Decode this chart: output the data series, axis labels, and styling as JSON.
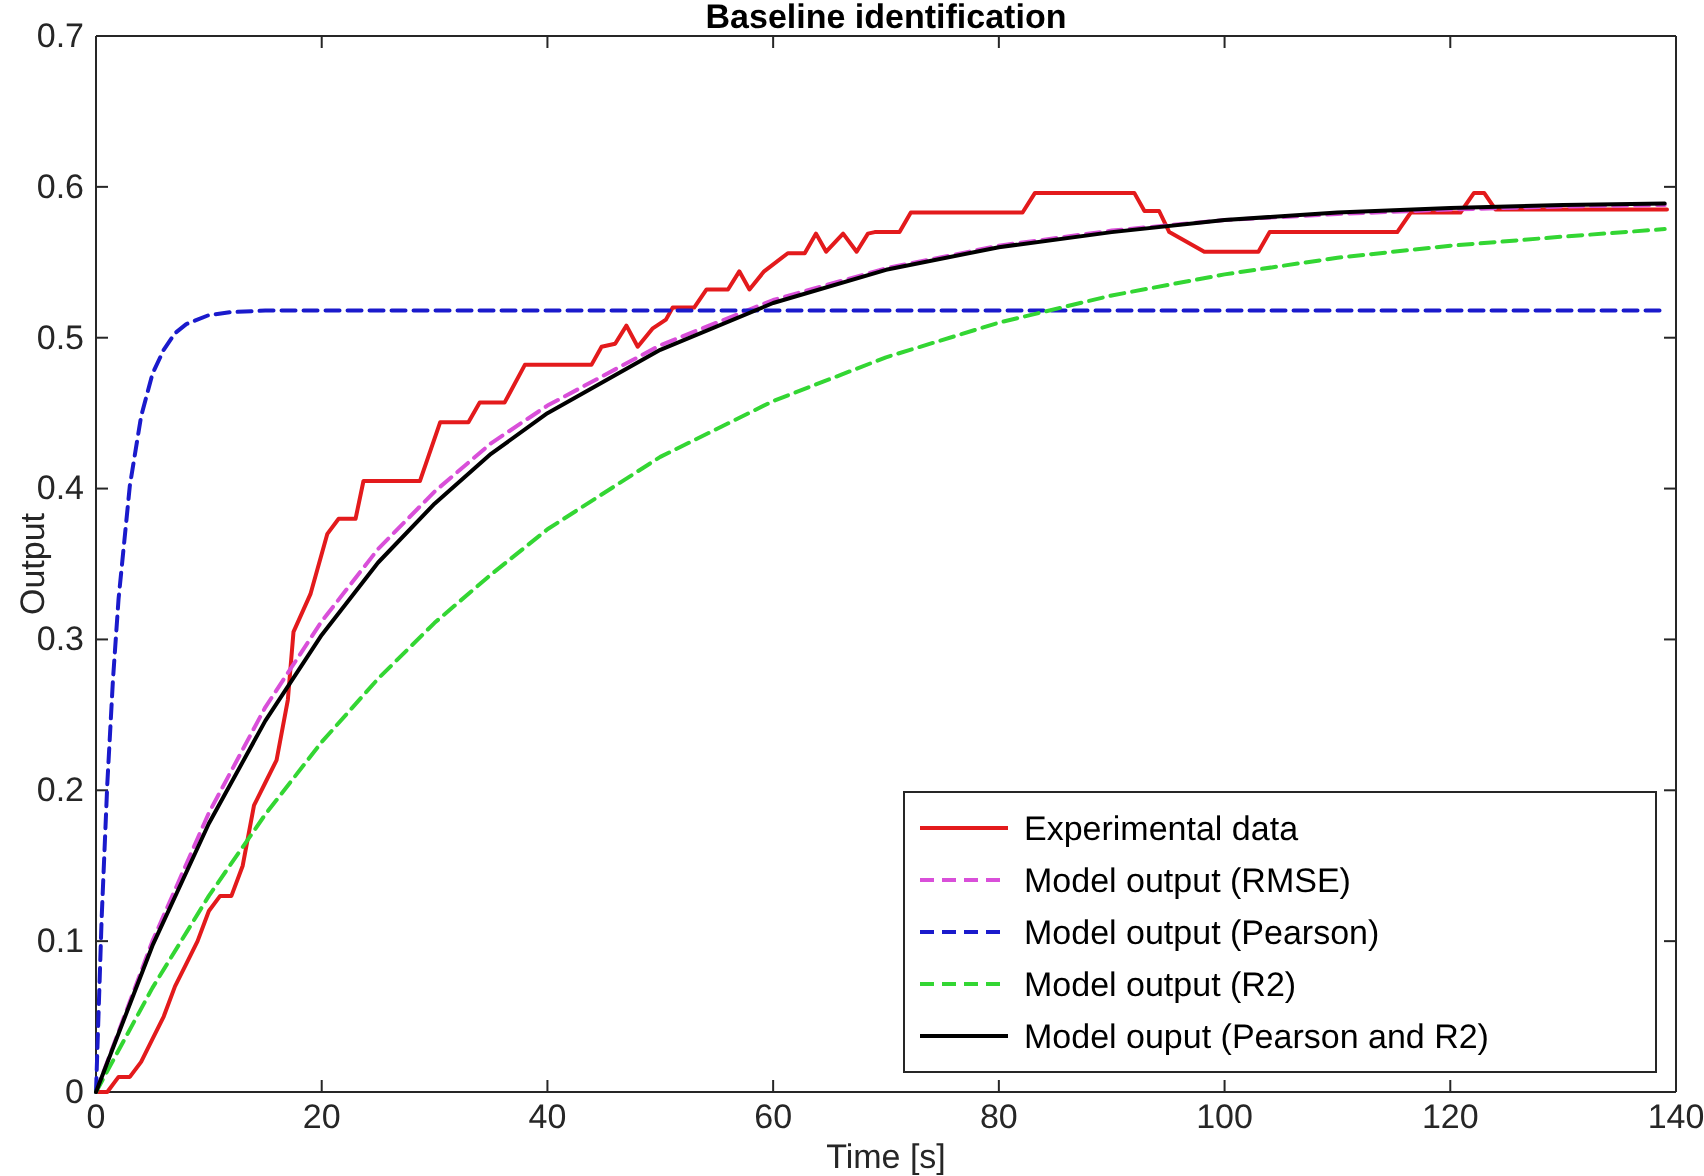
{
  "chart_data": {
    "type": "line",
    "title": "Baseline identification",
    "xlabel": "Time [s]",
    "ylabel": "Output",
    "xlim": [
      0,
      140
    ],
    "xticks": [
      0,
      20,
      40,
      60,
      80,
      100,
      120,
      140
    ],
    "ylim": [
      0,
      0.7
    ],
    "yticks": [
      0,
      0.1,
      0.2,
      0.3,
      0.4,
      0.5,
      0.6,
      0.7
    ],
    "grid": false,
    "legend": "bottom right",
    "series": [
      {
        "name": "Experimental data",
        "color": "#e31a1c",
        "line_style": "solid",
        "x": [
          0,
          1,
          2,
          3,
          4,
          5,
          6,
          7,
          8,
          9,
          10,
          11,
          12,
          13,
          14,
          15,
          16,
          17,
          17.5,
          19,
          20.5,
          21.5,
          23,
          23.7,
          28.7,
          30.5,
          33,
          34,
          36.2,
          38,
          43.9,
          44.8,
          46,
          47,
          48,
          49.3,
          50.5,
          51.1,
          53,
          54.1,
          56,
          57,
          57.9,
          59.2,
          61.3,
          62.8,
          63.8,
          64.7,
          66.2,
          67.4,
          68.4,
          69,
          71.2,
          72.2,
          82.1,
          83.2,
          92,
          92.9,
          94.2,
          95.1,
          98.2,
          103,
          104,
          115.3,
          116.5,
          120.9,
          122.1,
          123,
          124,
          139.2
        ],
        "values": [
          0,
          0,
          0.01,
          0.01,
          0.02,
          0.035,
          0.05,
          0.07,
          0.085,
          0.1,
          0.12,
          0.13,
          0.13,
          0.15,
          0.19,
          0.205,
          0.22,
          0.26,
          0.305,
          0.33,
          0.37,
          0.38,
          0.38,
          0.405,
          0.405,
          0.444,
          0.444,
          0.457,
          0.457,
          0.482,
          0.482,
          0.494,
          0.496,
          0.508,
          0.494,
          0.506,
          0.512,
          0.52,
          0.52,
          0.532,
          0.532,
          0.544,
          0.532,
          0.544,
          0.556,
          0.556,
          0.569,
          0.557,
          0.569,
          0.557,
          0.569,
          0.57,
          0.57,
          0.583,
          0.583,
          0.596,
          0.596,
          0.584,
          0.584,
          0.57,
          0.557,
          0.557,
          0.57,
          0.57,
          0.583,
          0.583,
          0.596,
          0.596,
          0.585,
          0.585
        ]
      },
      {
        "name": "Model output (RMSE)",
        "color": "#d94fd9",
        "line_style": "dashed",
        "x": [
          0,
          5,
          10,
          15,
          20,
          25,
          30,
          35,
          40,
          50,
          60,
          70,
          80,
          90,
          100,
          110,
          120,
          130,
          139
        ],
        "values": [
          0,
          0.1,
          0.185,
          0.255,
          0.312,
          0.36,
          0.398,
          0.43,
          0.455,
          0.495,
          0.525,
          0.546,
          0.561,
          0.571,
          0.578,
          0.582,
          0.585,
          0.587,
          0.588
        ]
      },
      {
        "name": "Model output (Pearson)",
        "color": "#1a1acc",
        "line_style": "dashed",
        "x": [
          0,
          0.5,
          1,
          1.5,
          2,
          3,
          4,
          5,
          6,
          7,
          8,
          10,
          12,
          15,
          139
        ],
        "values": [
          0,
          0.115,
          0.204,
          0.273,
          0.327,
          0.402,
          0.448,
          0.476,
          0.492,
          0.503,
          0.509,
          0.515,
          0.517,
          0.518,
          0.518
        ]
      },
      {
        "name": "Model output (R2)",
        "color": "#33d633",
        "line_style": "dashed",
        "x": [
          0,
          5,
          10,
          15,
          20,
          25,
          30,
          35,
          40,
          50,
          60,
          70,
          80,
          90,
          100,
          110,
          120,
          130,
          139
        ],
        "values": [
          0,
          0.069,
          0.13,
          0.184,
          0.232,
          0.274,
          0.311,
          0.343,
          0.373,
          0.421,
          0.458,
          0.487,
          0.51,
          0.528,
          0.542,
          0.553,
          0.561,
          0.567,
          0.572
        ]
      },
      {
        "name": "Model ouput (Pearson and R2)",
        "color": "#000000",
        "line_style": "solid",
        "x": [
          0,
          5,
          10,
          15,
          20,
          25,
          30,
          35,
          40,
          50,
          60,
          70,
          80,
          90,
          100,
          110,
          120,
          130,
          139
        ],
        "values": [
          0,
          0.097,
          0.178,
          0.246,
          0.303,
          0.351,
          0.39,
          0.423,
          0.45,
          0.492,
          0.523,
          0.545,
          0.56,
          0.57,
          0.578,
          0.583,
          0.586,
          0.588,
          0.589
        ]
      }
    ]
  }
}
